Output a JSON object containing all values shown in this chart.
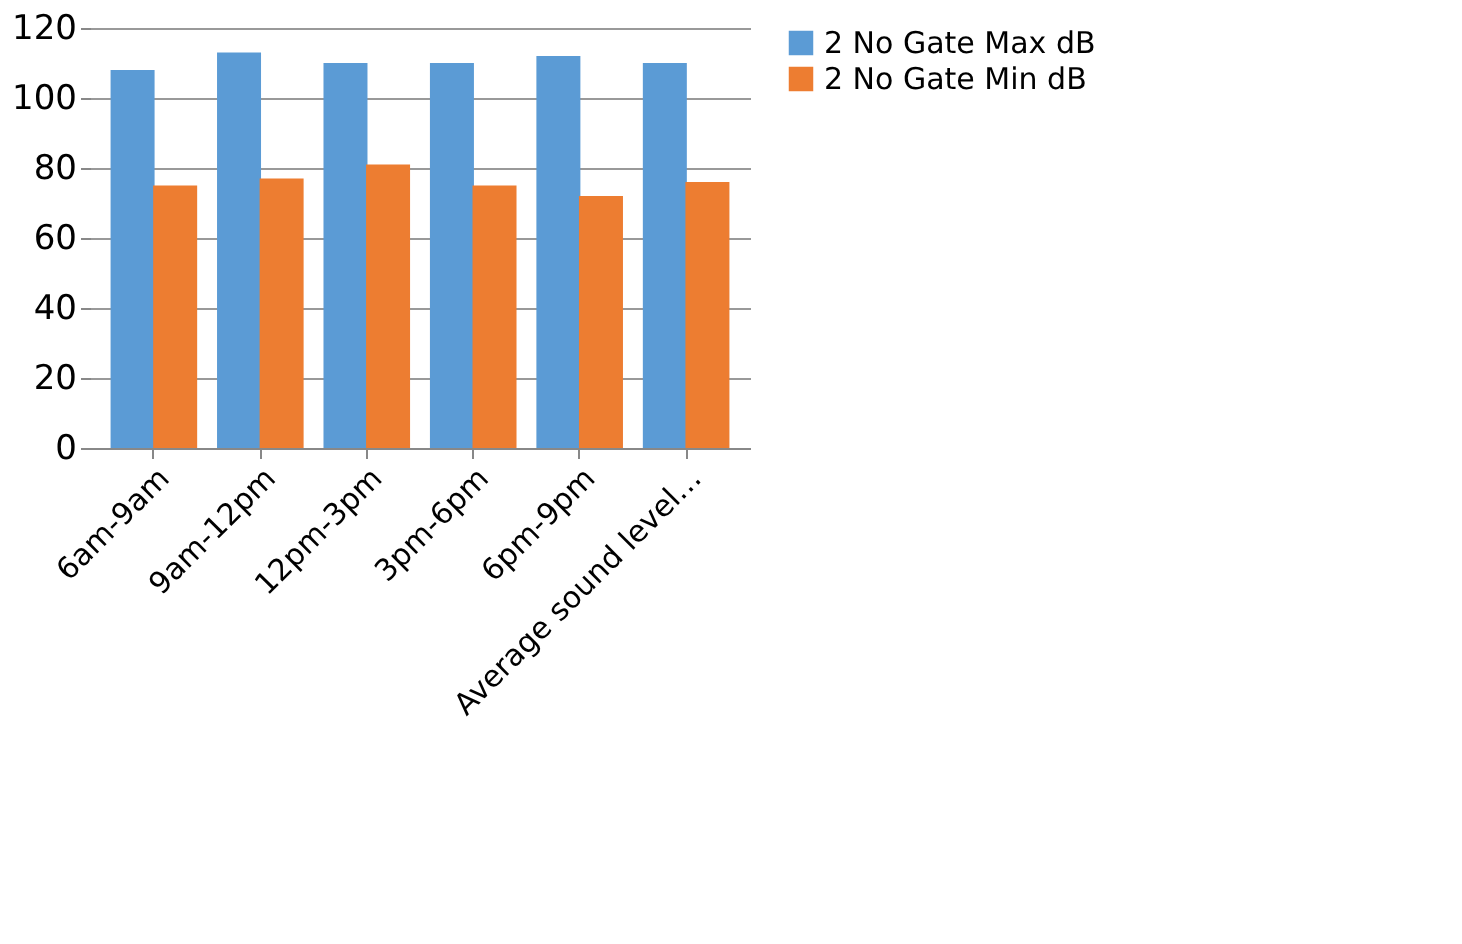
{
  "chart_data": {
    "type": "bar",
    "categories": [
      "6am-9am",
      "9am-12pm",
      "12pm-3pm",
      "3pm-6pm",
      "6pm-9pm",
      "Average sound level…"
    ],
    "series": [
      {
        "name": "2 No Gate Max dB",
        "color": "#5b9bd5",
        "values": [
          108,
          113,
          110,
          110,
          112,
          110
        ]
      },
      {
        "name": "2 No Gate Min dB",
        "color": "#ed7d31",
        "values": [
          75,
          77,
          81,
          75,
          72,
          76
        ]
      }
    ],
    "ylim": [
      0,
      120
    ],
    "yticks": [
      0,
      20,
      40,
      60,
      80,
      100,
      120
    ],
    "grid": "y",
    "legend": "right"
  }
}
